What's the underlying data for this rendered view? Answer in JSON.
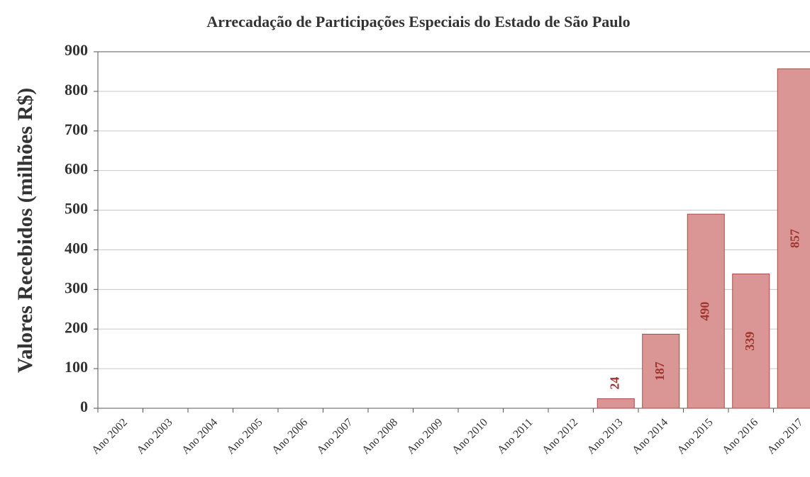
{
  "chart_data": {
    "type": "bar",
    "title": "Arrecadação de Participações Especiais do Estado de São Paulo",
    "y_label": "Valores Recebidos (milhões R$)",
    "categories": [
      "Ano 2002",
      "Ano 2003",
      "Ano 2004",
      "Ano 2005",
      "Ano 2006",
      "Ano 2007",
      "Ano 2008",
      "Ano 2009",
      "Ano 2010",
      "Ano 2011",
      "Ano 2012",
      "Ano 2013",
      "Ano 2014",
      "Ano 2015",
      "Ano 2016",
      "Ano 2017"
    ],
    "values": [
      null,
      null,
      null,
      null,
      null,
      null,
      null,
      null,
      null,
      null,
      null,
      24,
      187,
      490,
      339,
      857
    ],
    "color": "#d99694",
    "ylim": [
      0,
      900
    ],
    "yticks": [
      0,
      100,
      200,
      300,
      400,
      500,
      600,
      700,
      800,
      900
    ],
    "grid": true
  }
}
